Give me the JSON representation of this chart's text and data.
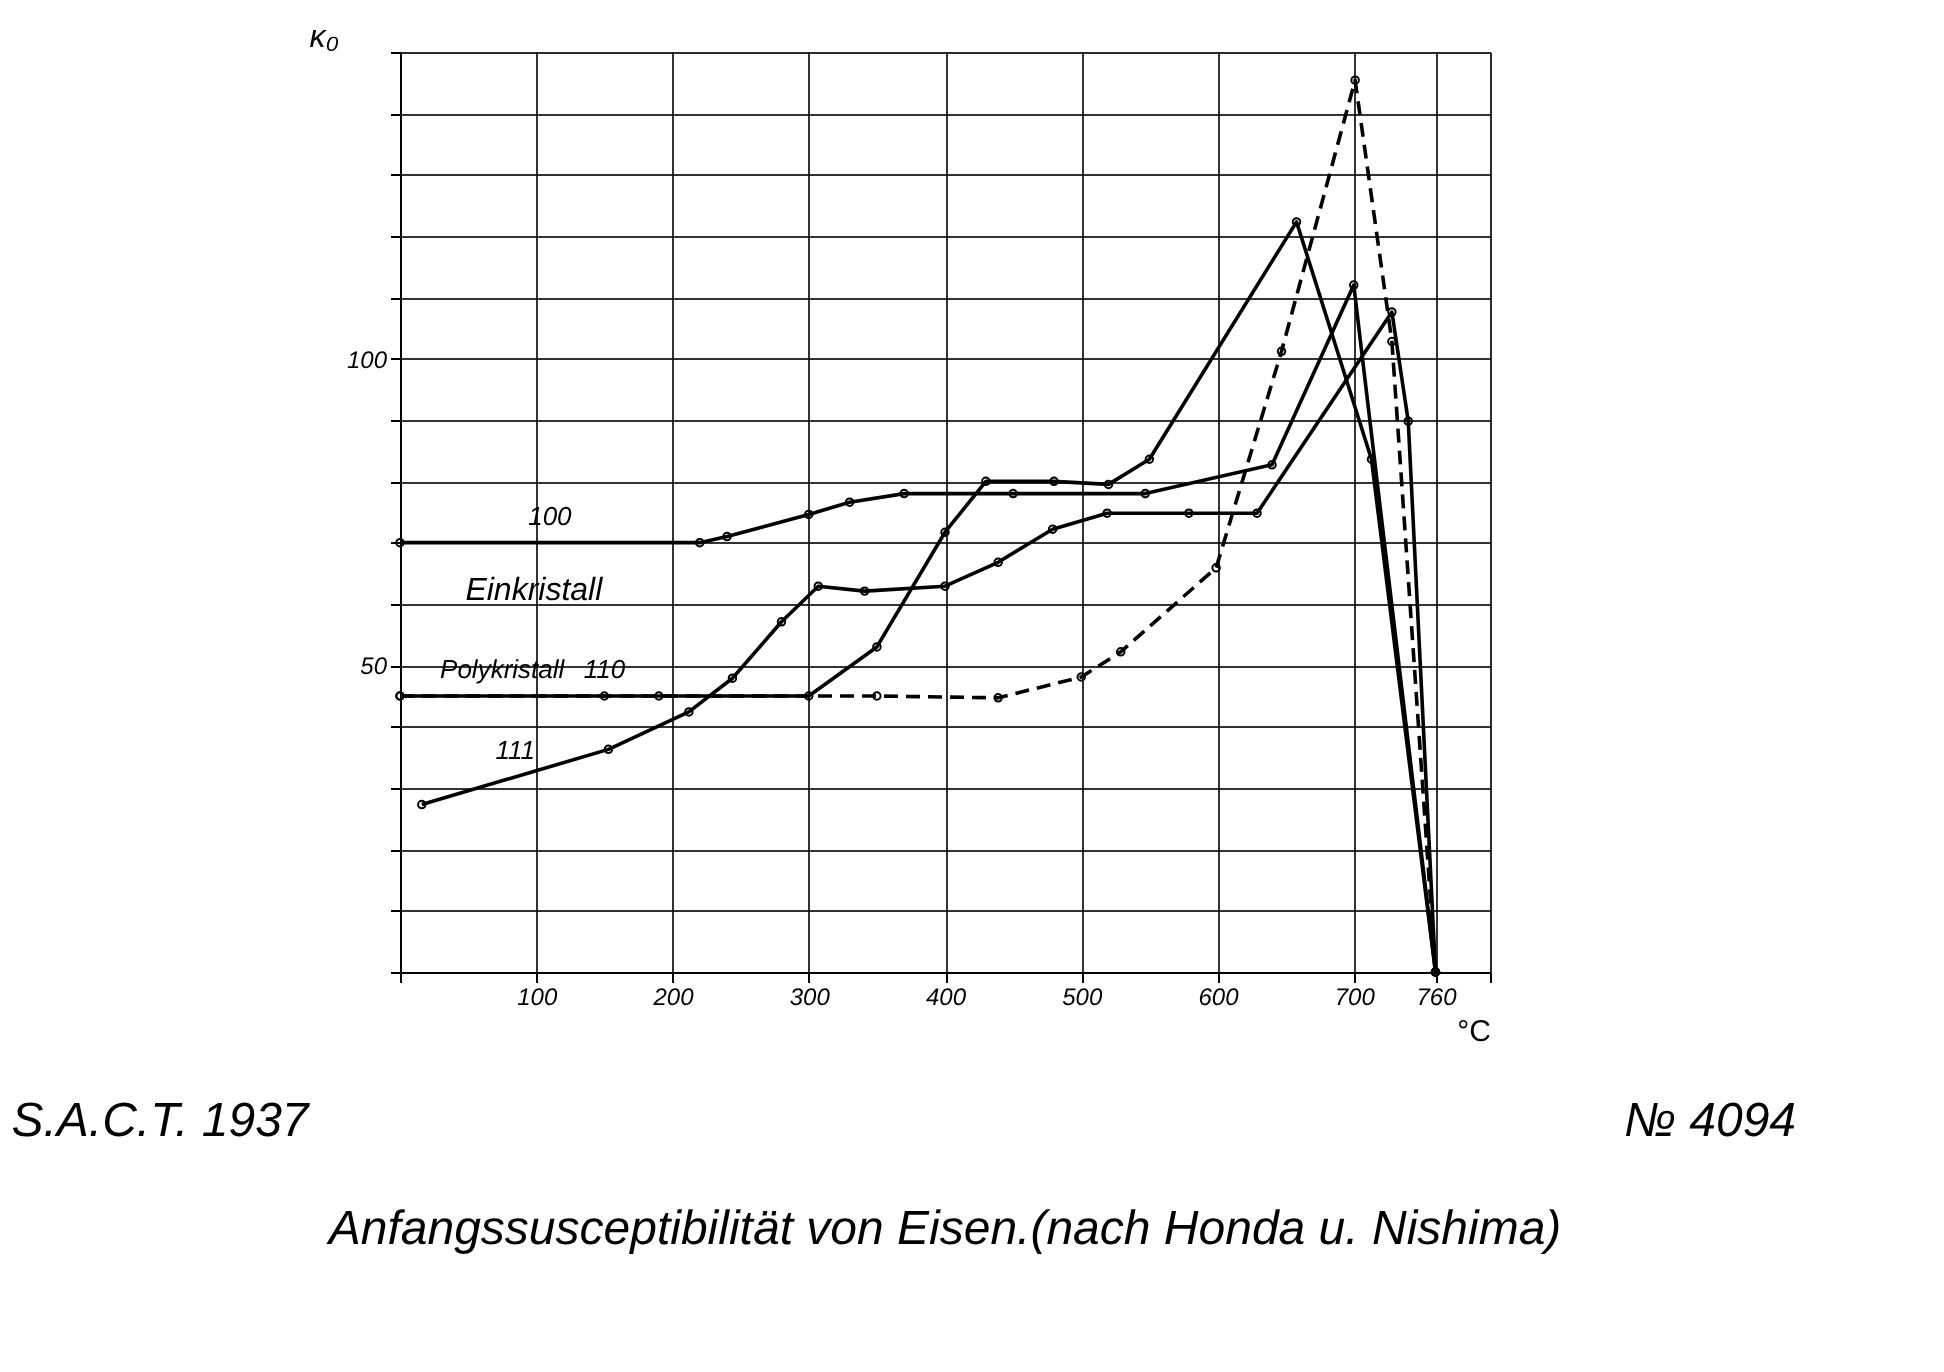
{
  "chart_data": {
    "type": "line",
    "title": "Anfangssusceptibilität von Eisen.(nach Honda u. Nishima)",
    "xlabel": "°C",
    "ylabel": "κ₀",
    "xlim": [
      0,
      800
    ],
    "ylim": [
      0,
      150
    ],
    "xticks": [
      {
        "value": 0,
        "label": null
      },
      100,
      200,
      300,
      400,
      500,
      600,
      700,
      760,
      {
        "value": 800,
        "label": null
      }
    ],
    "yticks": [
      {
        "value": 0,
        "label": null
      },
      {
        "value": 10,
        "label": null
      },
      {
        "value": 20,
        "label": null
      },
      {
        "value": 30,
        "label": null
      },
      {
        "value": 40,
        "label": null
      },
      50,
      {
        "value": 60,
        "label": null
      },
      {
        "value": 70,
        "label": null
      },
      {
        "value": 80,
        "label": null
      },
      {
        "value": 90,
        "label": null
      },
      100,
      {
        "value": 110,
        "label": null
      },
      {
        "value": 120,
        "label": null
      },
      {
        "value": 130,
        "label": null
      },
      {
        "value": 140,
        "label": null
      },
      {
        "value": 150,
        "label": null
      }
    ],
    "grid": true,
    "marker": "circle",
    "series": [
      {
        "name": "100",
        "color": "#000000",
        "line_style": "solid",
        "x": [
          0,
          220,
          240,
          300,
          330,
          370,
          450,
          547,
          640,
          700,
          760
        ],
        "values": [
          70,
          70,
          71,
          74.6,
          76.6,
          78,
          78,
          78,
          82.7,
          112,
          0
        ]
      },
      {
        "name": "110",
        "color": "#000000",
        "line_style": "solid",
        "x": [
          0,
          300,
          350,
          400,
          430,
          480,
          520,
          550,
          658,
          713,
          760
        ],
        "values": [
          45,
          45,
          53,
          71.7,
          80,
          80,
          79.5,
          83.6,
          122.3,
          83.6,
          0
        ]
      },
      {
        "name": "111",
        "color": "#000000",
        "line_style": "solid",
        "x": [
          16,
          153,
          212,
          244,
          280,
          307,
          341,
          400,
          439,
          479,
          519,
          579,
          629,
          728,
          740,
          760
        ],
        "values": [
          27.3,
          36.3,
          42.4,
          47.9,
          57.1,
          62.9,
          62.1,
          62.9,
          66.8,
          72.2,
          74.8,
          74.8,
          74.8,
          107.6,
          89.8,
          0
        ]
      },
      {
        "name": "Polykristall",
        "color": "#000000",
        "line_style": "dashed",
        "x": [
          0,
          150,
          190,
          350,
          439,
          500,
          529,
          599,
          647,
          701,
          728,
          760
        ],
        "values": [
          45,
          45,
          45,
          45,
          44.7,
          48.1,
          52.2,
          65.9,
          101.2,
          145.4,
          102.8,
          0
        ]
      }
    ],
    "annotations": [
      "Einkristall",
      "S.A.C.T. 1937",
      "№ 4094"
    ]
  }
}
